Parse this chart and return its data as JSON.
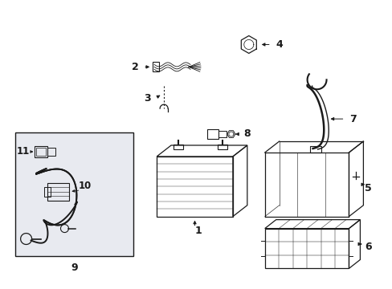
{
  "bg_color": "#ffffff",
  "line_color": "#1a1a1a",
  "gray_color": "#e8e8e8",
  "box9_bg": "#e8eaf0"
}
